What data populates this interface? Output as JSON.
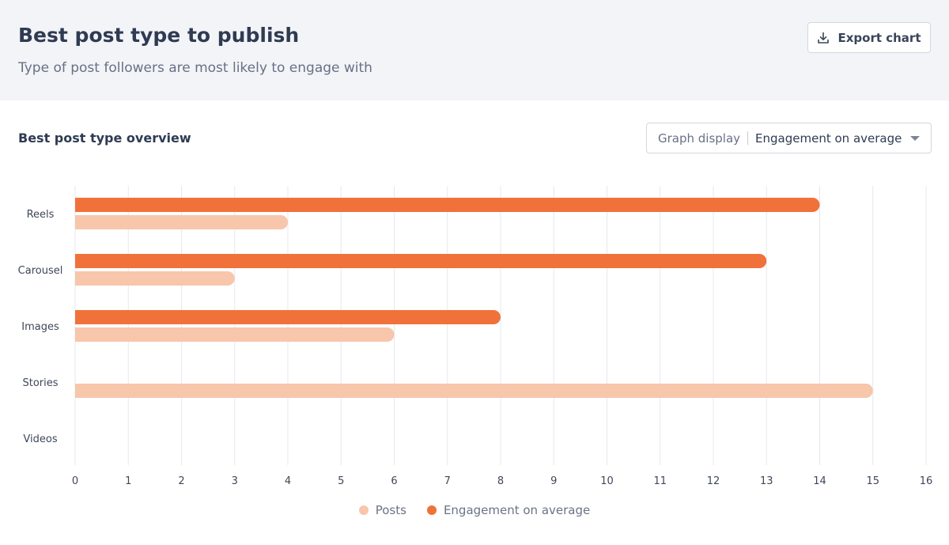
{
  "header": {
    "title": "Best post type to publish",
    "subtitle": "Type of post followers are most likely to engage with",
    "export_label": "Export chart",
    "export_icon": "download-icon"
  },
  "section": {
    "title": "Best post type overview",
    "graph_display_label": "Graph display",
    "graph_display_value": "Engagement on average"
  },
  "colors": {
    "engagement": "#f0723a",
    "posts": "#f7c6ab",
    "grid": "#e6e8ec",
    "axis_text": "#3e4759"
  },
  "chart_data": {
    "type": "bar",
    "orientation": "horizontal",
    "categories": [
      "Reels",
      "Carousel",
      "Images",
      "Stories",
      "Videos"
    ],
    "series": [
      {
        "name": "Engagement on average",
        "values": [
          14,
          13,
          8,
          0,
          0
        ]
      },
      {
        "name": "Posts",
        "values": [
          4,
          3,
          6,
          15,
          0
        ]
      }
    ],
    "xlim": [
      0,
      16
    ],
    "xticks": [
      0,
      1,
      2,
      3,
      4,
      5,
      6,
      7,
      8,
      9,
      10,
      11,
      12,
      13,
      14,
      15,
      16
    ],
    "grid": true,
    "legend_position": "bottom-center"
  },
  "legend": [
    {
      "label": "Posts",
      "color": "#f7c6ab"
    },
    {
      "label": "Engagement on average",
      "color": "#f0723a"
    }
  ]
}
